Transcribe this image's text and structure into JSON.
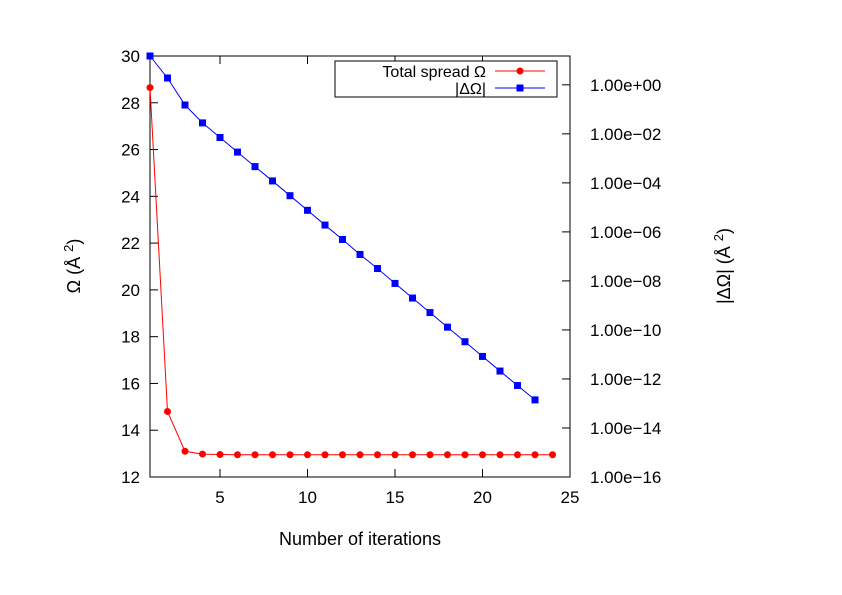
{
  "chart_data": {
    "type": "line",
    "xlabel": "Number of iterations",
    "ylabel": [
      "Ω (Å ",
      "2",
      ")"
    ],
    "y2label": [
      "|ΔΩ| (Å ",
      "2",
      ")"
    ],
    "x": [
      1,
      2,
      3,
      4,
      5,
      6,
      7,
      8,
      9,
      10,
      11,
      12,
      13,
      14,
      15,
      16,
      17,
      18,
      19,
      20,
      21,
      22,
      23,
      24
    ],
    "xlim": [
      1,
      25
    ],
    "xticks": [
      5,
      10,
      15,
      20,
      25
    ],
    "ylim": [
      12,
      30
    ],
    "yticks": [
      12,
      14,
      16,
      18,
      20,
      22,
      24,
      26,
      28,
      30
    ],
    "y2lim": [
      1e-16,
      15
    ],
    "y2log": true,
    "y2ticks": [
      {
        "value": 1.0,
        "label": "1.00e+00"
      },
      {
        "value": 0.01,
        "label": "1.00e−02"
      },
      {
        "value": 0.0001,
        "label": "1.00e−04"
      },
      {
        "value": 1e-06,
        "label": "1.00e−06"
      },
      {
        "value": 1e-08,
        "label": "1.00e−08"
      },
      {
        "value": 1e-10,
        "label": "1.00e−10"
      },
      {
        "value": 1e-12,
        "label": "1.00e−12"
      },
      {
        "value": 1e-14,
        "label": "1.00e−14"
      },
      {
        "value": 1e-16,
        "label": "1.00e−16"
      }
    ],
    "legend": "top-right",
    "series": [
      {
        "name": "Total spread Ω",
        "color": "#ff0000",
        "marker": "circle",
        "values": [
          28.65,
          14.8,
          13.1,
          12.98,
          12.96,
          12.95,
          12.95,
          12.95,
          12.95,
          12.95,
          12.95,
          12.95,
          12.95,
          12.95,
          12.95,
          12.95,
          12.95,
          12.95,
          12.95,
          12.95,
          12.95,
          12.95,
          12.95,
          12.95
        ]
      },
      {
        "name": "|ΔΩ|",
        "color": "#0000ff",
        "marker": "square",
        "axis": "y2",
        "values": [
          15,
          1.9,
          0.15,
          0.028,
          0.0071,
          0.0018,
          0.00046,
          0.00012,
          3e-05,
          7.6e-06,
          1.9e-06,
          4.9e-07,
          1.2e-07,
          3.2e-08,
          7.9e-09,
          2e-09,
          5.1e-10,
          1.3e-10,
          3.3e-11,
          8.3e-12,
          2.1e-12,
          5.4e-13,
          1.4e-13,
          null
        ]
      }
    ]
  }
}
